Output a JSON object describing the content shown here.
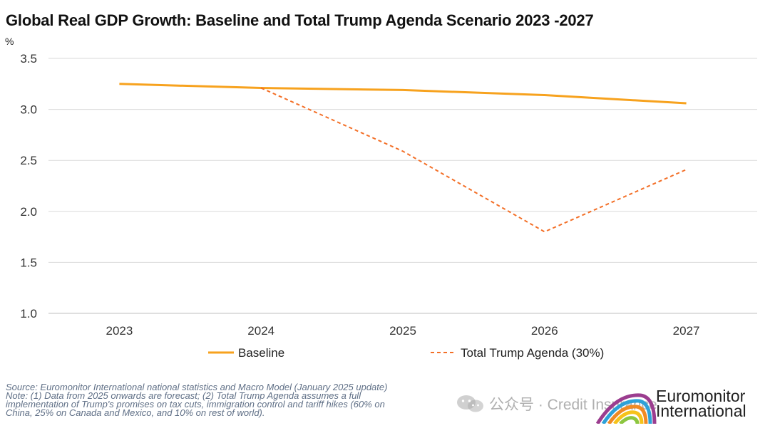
{
  "chart_data": {
    "type": "line",
    "title": "Global Real GDP Growth: Baseline and Total Trump Agenda Scenario 2023 -2027",
    "ylabel": "%",
    "x": [
      "2023",
      "2024",
      "2025",
      "2026",
      "2027"
    ],
    "ylim": [
      1.0,
      3.5
    ],
    "yticks": [
      "3.5",
      "3.0",
      "2.5",
      "2.0",
      "1.5",
      "1.0"
    ],
    "grid": "horizontal",
    "legend_position": "bottom",
    "series": [
      {
        "name": "Baseline",
        "style": "solid",
        "color": "#f7a21e",
        "values": [
          3.25,
          3.21,
          3.19,
          3.14,
          3.06
        ]
      },
      {
        "name": "Total Trump Agenda (30%)",
        "style": "dashed",
        "color": "#f36f27",
        "values": [
          null,
          3.21,
          2.59,
          1.8,
          2.41
        ]
      }
    ]
  },
  "footer": {
    "source": "Source: Euromonitor International national statistics and Macro Model (January 2025 update)",
    "note_line1": "Note: (1) Data from 2025 onwards are forecast; (2) Total Trump Agenda assumes a full",
    "note_line2": "implementation of Trump's promises on tax cuts, immigration control and tariff hikes (60% on",
    "note_line3": "China, 25% on Canada and Mexico, and 10% on rest of world)."
  },
  "watermark": {
    "text": "公众号 · Credit Insurance",
    "icon": "wechat-icon"
  },
  "logo": {
    "line1": "Euromonitor",
    "line2": "International"
  }
}
